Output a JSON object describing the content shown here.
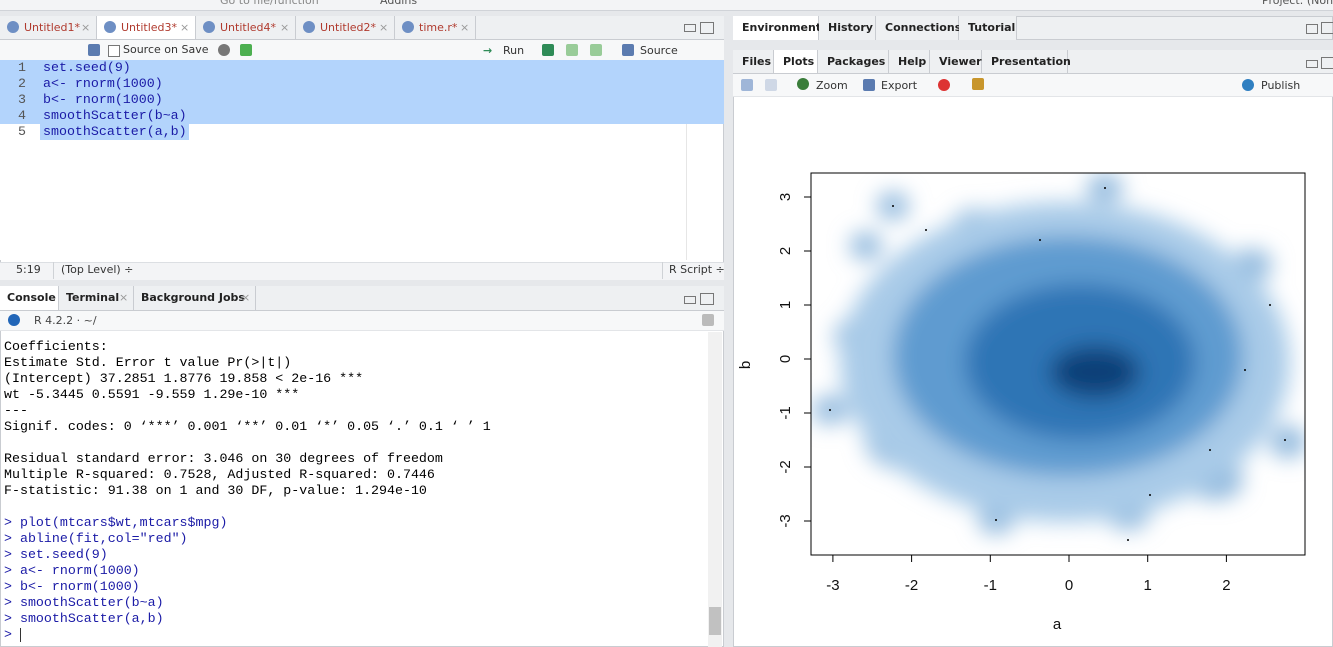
{
  "top_bar": {
    "search": "Go to file/function",
    "addins": "Addins",
    "project": "Project: (None)"
  },
  "source_pane": {
    "tabs": [
      "Untitled1*",
      "Untitled3*",
      "Untitled4*",
      "Untitled2*",
      "time.r*"
    ],
    "toolbar": {
      "source_on_save": "Source on Save",
      "run": "Run",
      "source": "Source"
    },
    "lines": [
      {
        "number": 1,
        "code": "set.seed(9)"
      },
      {
        "number": 2,
        "code": "a<- rnorm(1000)"
      },
      {
        "number": 3,
        "code": "b<- rnorm(1000)"
      },
      {
        "number": 4,
        "code": "smoothScatter(b~a)"
      },
      {
        "number": 5,
        "code": "smoothScatter(a,b)"
      }
    ],
    "status": {
      "position": "5:19",
      "scope": "(Top Level) ÷",
      "file_type": "R Script ÷"
    }
  },
  "console_pane": {
    "tabs": [
      "Console",
      "Terminal",
      "Background Jobs"
    ],
    "header": "R 4.2.2 · ~/",
    "output": [
      [
        "Coefficients:",
        "            Estimate Std. Error t value Pr(>|t|)",
        "(Intercept)  37.2851     1.8776  19.858  < 2e-16 ***",
        "wt           -5.3445     0.5591  -9.559 1.29e-10 ***",
        "---",
        "Signif. codes:  0 ‘***’ 0.001 ‘**’ 0.01 ‘*’ 0.05 ‘.’ 0.1 ‘ ’ 1"
      ],
      [
        "Residual standard error: 3.046 on 30 degrees of freedom",
        "Multiple R-squared:  0.7528,    Adjusted R-squared:  0.7446",
        "F-statistic: 91.38 on 1 and 30 DF,  p-value: 1.294e-10"
      ]
    ],
    "commands": [
      "> plot(mtcars$wt,mtcars$mpg)",
      "> abline(fit,col=\"red\")",
      "> set.seed(9)",
      "> a<- rnorm(1000)",
      "> b<- rnorm(1000)",
      "> smoothScatter(b~a)",
      "> smoothScatter(a,b)"
    ],
    "prompt": ">"
  },
  "environment_pane": {
    "tabs": [
      "Environment",
      "History",
      "Connections",
      "Tutorial"
    ]
  },
  "files_pane": {
    "tabs": [
      "Files",
      "Plots",
      "Packages",
      "Help",
      "Viewer",
      "Presentation"
    ],
    "toolbar": {
      "zoom": "Zoom",
      "export": "Export",
      "publish": "Publish"
    },
    "plot": {
      "xticks": [
        -3,
        -2,
        -1,
        0,
        1,
        2
      ],
      "yticks": [
        -3,
        -2,
        -1,
        0,
        1,
        2,
        3
      ],
      "xlabel": "a",
      "ylabel": "b"
    }
  }
}
